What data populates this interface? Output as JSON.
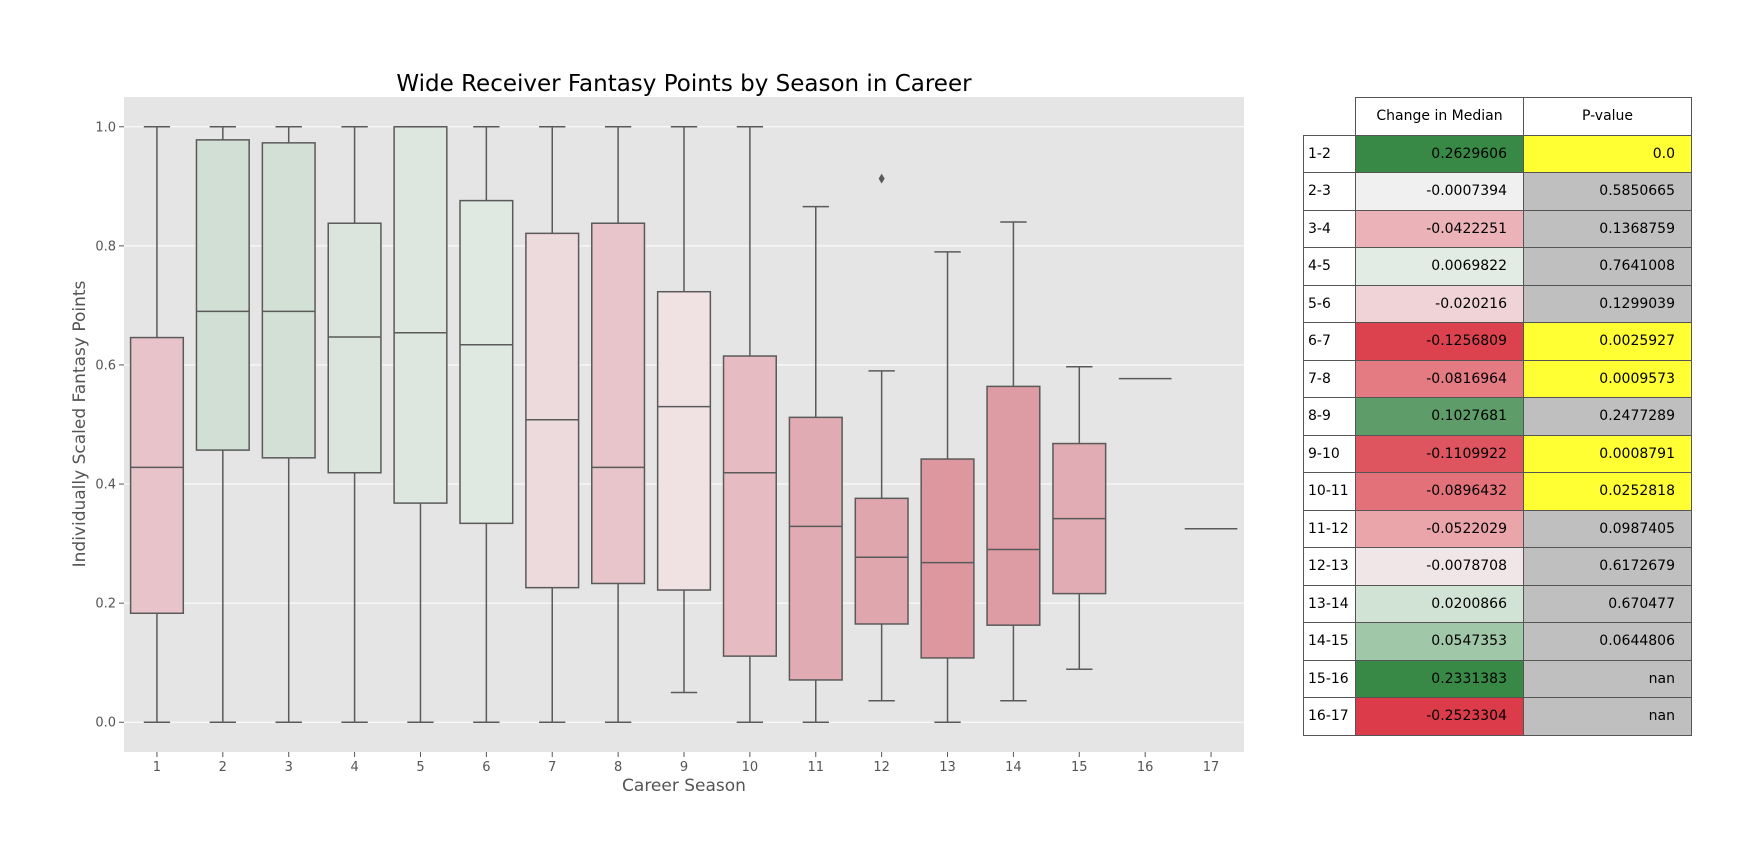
{
  "chart_data": {
    "type": "box",
    "title": "Wide Receiver Fantasy Points by Season in Career",
    "xlabel": "Career Season",
    "ylabel": "Individually Scaled Fantasy Points",
    "ylim": [
      -0.05,
      1.05
    ],
    "yticks": [
      "0.0",
      "0.2",
      "0.4",
      "0.6",
      "0.8",
      "1.0"
    ],
    "grid": true,
    "categories": [
      "1",
      "2",
      "3",
      "4",
      "5",
      "6",
      "7",
      "8",
      "9",
      "10",
      "11",
      "12",
      "13",
      "14",
      "15",
      "16",
      "17"
    ],
    "boxes": [
      {
        "min": 0.0,
        "q1": 0.183,
        "median": 0.428,
        "q3": 0.646,
        "max": 1.0,
        "color": "#e8c4ca"
      },
      {
        "min": 0.0,
        "q1": 0.457,
        "median": 0.69,
        "q3": 0.978,
        "max": 1.0,
        "color": "#d1dfd4"
      },
      {
        "min": 0.0,
        "q1": 0.444,
        "median": 0.69,
        "q3": 0.973,
        "max": 1.0,
        "color": "#d2e0d5"
      },
      {
        "min": 0.0,
        "q1": 0.419,
        "median": 0.647,
        "q3": 0.838,
        "max": 1.0,
        "color": "#dbe5dd"
      },
      {
        "min": 0.0,
        "q1": 0.368,
        "median": 0.654,
        "q3": 1.0,
        "max": 1.0,
        "color": "#dde6df"
      },
      {
        "min": 0.0,
        "q1": 0.334,
        "median": 0.634,
        "q3": 0.876,
        "max": 1.0,
        "color": "#e0e8e2"
      },
      {
        "min": 0.0,
        "q1": 0.226,
        "median": 0.508,
        "q3": 0.821,
        "max": 1.0,
        "color": "#ecdadd"
      },
      {
        "min": 0.0,
        "q1": 0.233,
        "median": 0.428,
        "q3": 0.838,
        "max": 1.0,
        "color": "#e8c5cb"
      },
      {
        "min": 0.05,
        "q1": 0.222,
        "median": 0.53,
        "q3": 0.723,
        "max": 1.0,
        "color": "#f0e2e3"
      },
      {
        "min": 0.0,
        "q1": 0.111,
        "median": 0.419,
        "q3": 0.615,
        "max": 1.0,
        "color": "#e6bcc2"
      },
      {
        "min": 0.0,
        "q1": 0.071,
        "median": 0.329,
        "q3": 0.512,
        "max": 0.866,
        "color": "#e0abb2"
      },
      {
        "min": 0.036,
        "q1": 0.165,
        "median": 0.277,
        "q3": 0.376,
        "max": 0.59,
        "color": "#dfa6ae",
        "outliers": [
          0.913
        ]
      },
      {
        "min": 0.0,
        "q1": 0.108,
        "median": 0.268,
        "q3": 0.442,
        "max": 0.79,
        "color": "#dc979f"
      },
      {
        "min": 0.036,
        "q1": 0.163,
        "median": 0.29,
        "q3": 0.564,
        "max": 0.84,
        "color": "#dd9ba4"
      },
      {
        "min": 0.089,
        "q1": 0.216,
        "median": 0.342,
        "q3": 0.468,
        "max": 0.597,
        "color": "#e1acb3"
      },
      {
        "min": 0.577,
        "q1": 0.577,
        "median": 0.577,
        "q3": 0.577,
        "max": 0.577,
        "color": "#e4b5bb"
      },
      {
        "min": 0.325,
        "q1": 0.325,
        "median": 0.325,
        "q3": 0.325,
        "max": 0.325,
        "color": "#e4b5bb"
      }
    ]
  },
  "table": {
    "headers": [
      "Change in Median",
      "P-value"
    ],
    "rows": [
      {
        "label": "1-2",
        "change": "0.2629606",
        "p": "0.0",
        "change_color": "#378945",
        "p_color": "#ffff33"
      },
      {
        "label": "2-3",
        "change": "-0.0007394",
        "p": "0.5850665",
        "change_color": "#f0f0f0",
        "p_color": "#bfbfbf"
      },
      {
        "label": "3-4",
        "change": "-0.0422251",
        "p": "0.1368759",
        "change_color": "#ebb3b7",
        "p_color": "#bfbfbf"
      },
      {
        "label": "4-5",
        "change": "0.0069822",
        "p": "0.7641008",
        "change_color": "#e2ece4",
        "p_color": "#bfbfbf"
      },
      {
        "label": "5-6",
        "change": "-0.020216",
        "p": "0.1299039",
        "change_color": "#efd3d6",
        "p_color": "#bfbfbf"
      },
      {
        "label": "6-7",
        "change": "-0.1256809",
        "p": "0.0025927",
        "change_color": "#dc414e",
        "p_color": "#ffff33"
      },
      {
        "label": "7-8",
        "change": "-0.0816964",
        "p": "0.0009573",
        "change_color": "#e47b83",
        "p_color": "#ffff33"
      },
      {
        "label": "8-9",
        "change": "0.1027681",
        "p": "0.2477289",
        "change_color": "#5e9d6a",
        "p_color": "#bfbfbf"
      },
      {
        "label": "9-10",
        "change": "-0.1109922",
        "p": "0.0008791",
        "change_color": "#de5560",
        "p_color": "#ffff33"
      },
      {
        "label": "10-11",
        "change": "-0.0896432",
        "p": "0.0252818",
        "change_color": "#e2717a",
        "p_color": "#ffff33"
      },
      {
        "label": "11-12",
        "change": "-0.0522029",
        "p": "0.0987405",
        "change_color": "#e9a5aa",
        "p_color": "#bfbfbf"
      },
      {
        "label": "12-13",
        "change": "-0.0078708",
        "p": "0.6172679",
        "change_color": "#f0e6e7",
        "p_color": "#bfbfbf"
      },
      {
        "label": "13-14",
        "change": "0.0200866",
        "p": "0.670477",
        "change_color": "#d1e3d4",
        "p_color": "#bfbfbf"
      },
      {
        "label": "14-15",
        "change": "0.0547353",
        "p": "0.0644806",
        "change_color": "#a0c7a7",
        "p_color": "#bfbfbf"
      },
      {
        "label": "15-16",
        "change": "0.2331383",
        "p": "nan",
        "change_color": "#378945",
        "p_color": "#bfbfbf"
      },
      {
        "label": "16-17",
        "change": "-0.2523304",
        "p": "nan",
        "change_color": "#dc3c4a",
        "p_color": "#bfbfbf"
      }
    ]
  }
}
